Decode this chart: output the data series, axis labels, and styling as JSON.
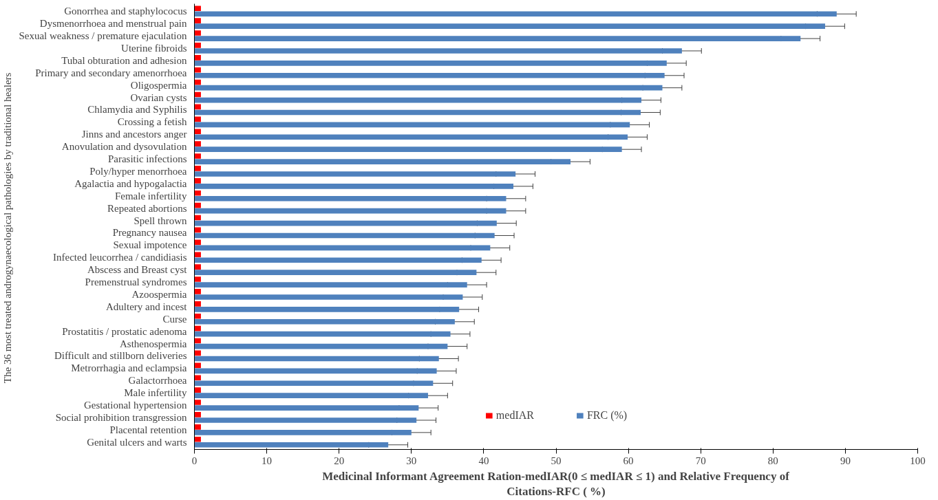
{
  "chart_data": {
    "type": "bar",
    "orientation": "horizontal",
    "xlabel": "Medicinal Informant Agreement Ration-medIAR(0 ≤ medIAR ≤ 1) and Relative Frequency of\nCitations-RFC ( %)",
    "ylabel": "The 36 most treated androgynaecological  pathologies by traditional healers",
    "categories": [
      "Gonorrhea and staphylococus",
      "Dysmenorrhoea and menstrual pain",
      "Sexual weakness / premature ejaculation",
      "Uterine fibroids",
      "Tubal obturation and adhesion",
      "Primary and secondary amenorrhoea",
      "Oligospermia",
      "Ovarian cysts",
      "Chlamydia and Syphilis",
      "Crossing a fetish",
      "Jinns and ancestors anger",
      "Anovulation and dysovulation",
      "Parasitic infections",
      "Poly/hyper menorrhoea",
      "Agalactia and hypogalactia",
      "Female infertility",
      "Repeated abortions",
      "Spell thrown",
      "Pregnancy nausea",
      "Sexual impotence",
      "Infected leucorrhea / candidiasis",
      "Abscess and Breast cyst",
      "Premenstrual syndromes",
      "Azoospermia",
      "Adultery and incest",
      "Curse",
      "Prostatitis / prostatic adenoma",
      "Asthenospermia",
      "Difficult and stillborn deliveries",
      "Metrorrhagia and eclampsia",
      "Galactorrhoea",
      "Male infertility",
      "Gestational hypertension",
      "Social prohibition transgression",
      "Placental retention",
      "Genital ulcers and warts"
    ],
    "series": [
      {
        "name": "medIAR",
        "color": "#ff0000",
        "values": [
          0.9,
          0.9,
          0.9,
          0.9,
          0.9,
          0.9,
          0.9,
          0.9,
          0.9,
          0.9,
          0.9,
          0.9,
          0.9,
          0.9,
          0.9,
          0.9,
          0.9,
          0.9,
          0.9,
          0.9,
          0.9,
          0.9,
          0.9,
          0.9,
          0.9,
          0.9,
          0.9,
          0.9,
          0.9,
          0.9,
          0.9,
          0.9,
          0.9,
          0.9,
          0.9,
          0.9
        ]
      },
      {
        "name": "FRC (%)",
        "color": "#4f81bd",
        "values": [
          88.8,
          87.2,
          83.8,
          67.4,
          65.3,
          65.0,
          64.7,
          61.8,
          61.7,
          60.2,
          59.9,
          59.1,
          52.0,
          44.4,
          44.1,
          43.1,
          43.1,
          41.8,
          41.5,
          40.9,
          39.7,
          39.0,
          37.7,
          37.1,
          36.6,
          36.0,
          35.4,
          35.0,
          33.8,
          33.5,
          33.0,
          32.3,
          31.0,
          30.7,
          30.0,
          26.8
        ],
        "errors": [
          2.7,
          2.7,
          2.7,
          2.7,
          2.7,
          2.7,
          2.7,
          2.7,
          2.7,
          2.7,
          2.7,
          2.7,
          2.7,
          2.7,
          2.7,
          2.7,
          2.7,
          2.7,
          2.7,
          2.7,
          2.7,
          2.7,
          2.7,
          2.7,
          2.7,
          2.7,
          2.7,
          2.7,
          2.7,
          2.7,
          2.7,
          2.7,
          2.7,
          2.7,
          2.7,
          2.7
        ]
      }
    ],
    "xlim": [
      0,
      100
    ],
    "xticks": [
      0,
      10,
      20,
      30,
      40,
      50,
      60,
      70,
      80,
      90,
      100
    ],
    "grid": false,
    "legend": "bottom"
  }
}
